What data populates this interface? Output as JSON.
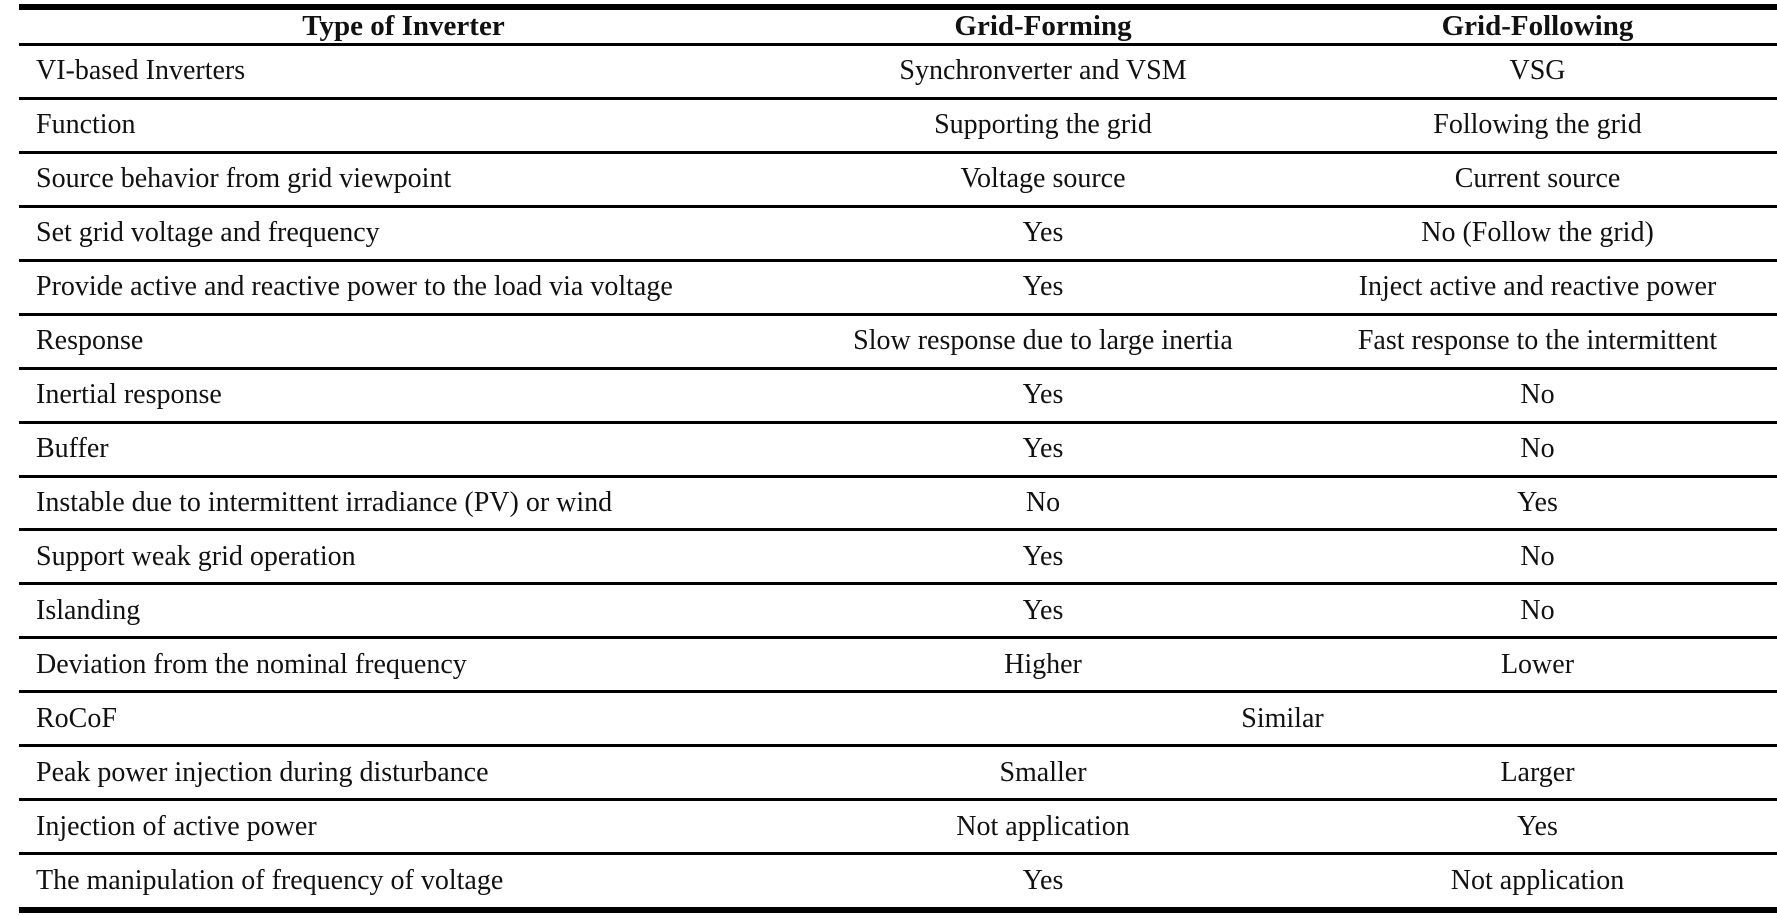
{
  "page": {
    "background_color": "#ffffff",
    "text_color": "#111111",
    "rule_color": "#000000"
  },
  "table": {
    "headers": [
      {
        "label": "Type of Inverter"
      },
      {
        "label": "Grid-Forming"
      },
      {
        "label": "Grid-Following"
      }
    ],
    "rows": [
      {
        "label": "VI-based Inverters",
        "grid_forming": "Synchronverter and VSM",
        "grid_following": "VSG"
      },
      {
        "label": "Function",
        "grid_forming": "Supporting the grid",
        "grid_following": "Following the grid"
      },
      {
        "label": "Source behavior from grid viewpoint",
        "grid_forming": "Voltage source",
        "grid_following": "Current source"
      },
      {
        "label": "Set grid voltage and frequency",
        "grid_forming": "Yes",
        "grid_following": "No (Follow the grid)"
      },
      {
        "label": "Provide active and reactive power to the load via voltage",
        "grid_forming": "Yes",
        "grid_following": "Inject active and reactive power"
      },
      {
        "label": "Response",
        "grid_forming": "Slow response due to large inertia",
        "grid_following": "Fast response to the intermittent"
      },
      {
        "label": "Inertial response",
        "grid_forming": "Yes",
        "grid_following": "No"
      },
      {
        "label": "Buffer",
        "grid_forming": "Yes",
        "grid_following": "No"
      },
      {
        "label": "Instable due to intermittent irradiance (PV) or wind",
        "grid_forming": "No",
        "grid_following": "Yes"
      },
      {
        "label": "Support weak grid operation",
        "grid_forming": "Yes",
        "grid_following": "No"
      },
      {
        "label": "Islanding",
        "grid_forming": "Yes",
        "grid_following": "No"
      },
      {
        "label": "Deviation from the nominal frequency",
        "grid_forming": "Higher",
        "grid_following": "Lower"
      },
      {
        "label": "RoCoF",
        "merged": "Similar"
      },
      {
        "label": "Peak power injection during disturbance",
        "grid_forming": "Smaller",
        "grid_following": "Larger"
      },
      {
        "label": "Injection of active power",
        "grid_forming": "Not application",
        "grid_following": "Yes"
      },
      {
        "label": "The manipulation of frequency of voltage",
        "grid_forming": "Yes",
        "grid_following": "Not application"
      }
    ]
  }
}
